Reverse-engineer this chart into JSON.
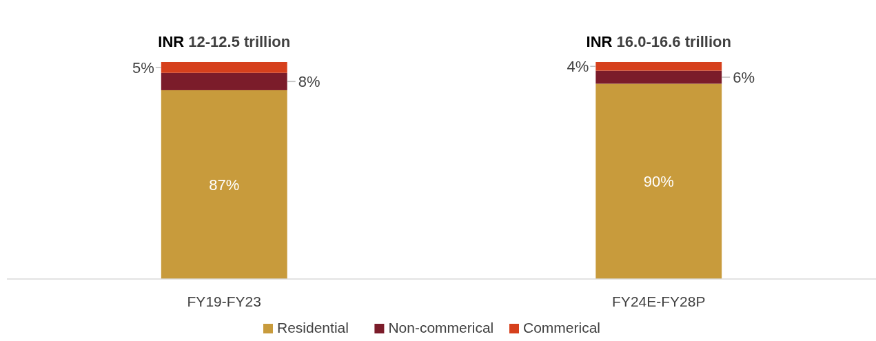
{
  "chart_data": {
    "type": "bar",
    "stacked": true,
    "categories": [
      "FY19-FY23",
      "FY24E-FY28P"
    ],
    "series": [
      {
        "name": "Residential",
        "color": "#c89b3c",
        "values": [
          87,
          90
        ],
        "value_labels": [
          "87%",
          "90%"
        ]
      },
      {
        "name": "Non-commerical",
        "color": "#7b1c2a",
        "values": [
          8,
          6
        ],
        "value_labels": [
          "8%",
          "6%"
        ]
      },
      {
        "name": "Commerical",
        "color": "#d6401c",
        "values": [
          5,
          4
        ],
        "value_labels": [
          "5%",
          "4%"
        ]
      }
    ],
    "totals": [
      "INR 12-12.5 trillion",
      "INR 16.0-16.6 trillion"
    ],
    "legend": "bottom"
  }
}
